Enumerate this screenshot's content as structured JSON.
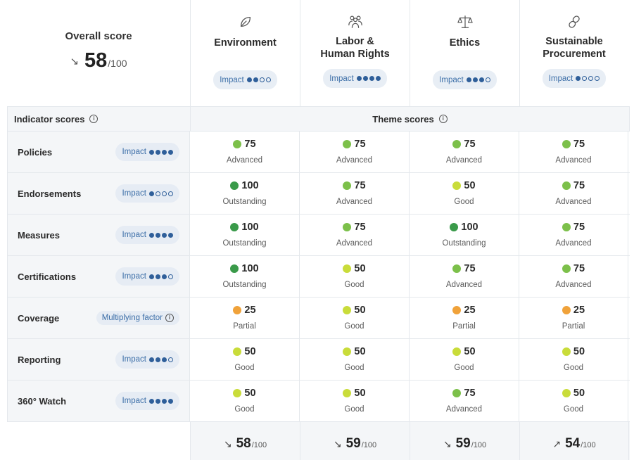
{
  "overall": {
    "label": "Overall score",
    "trend": "↘",
    "value": "58",
    "denominator": "/100"
  },
  "themes": [
    {
      "name": "Environment",
      "icon": "leaf-icon",
      "impact_label": "Impact",
      "impact_level": 2
    },
    {
      "name": "Labor & Human Rights",
      "icon": "people-icon",
      "impact_label": "Impact",
      "impact_level": 4
    },
    {
      "name": "Ethics",
      "icon": "scales-icon",
      "impact_label": "Impact",
      "impact_level": 3
    },
    {
      "name": "Sustainable Procurement",
      "icon": "link-icon",
      "impact_label": "Impact",
      "impact_level": 1
    }
  ],
  "sections": {
    "indicator_scores": "Indicator scores",
    "theme_scores": "Theme scores",
    "info_glyph": "i"
  },
  "level_colors": {
    "Outstanding": "#3a9a4a",
    "Advanced": "#7cc04a",
    "Good": "#c9dc3a",
    "Partial": "#f0a23a"
  },
  "indicators": [
    {
      "name": "Policies",
      "pill_type": "impact",
      "pill_label": "Impact",
      "impact_level": 4,
      "scores": [
        {
          "value": "75",
          "level": "Advanced"
        },
        {
          "value": "75",
          "level": "Advanced"
        },
        {
          "value": "75",
          "level": "Advanced"
        },
        {
          "value": "75",
          "level": "Advanced"
        }
      ]
    },
    {
      "name": "Endorsements",
      "pill_type": "impact",
      "pill_label": "Impact",
      "impact_level": 1,
      "scores": [
        {
          "value": "100",
          "level": "Outstanding"
        },
        {
          "value": "75",
          "level": "Advanced"
        },
        {
          "value": "50",
          "level": "Good"
        },
        {
          "value": "75",
          "level": "Advanced"
        }
      ]
    },
    {
      "name": "Measures",
      "pill_type": "impact",
      "pill_label": "Impact",
      "impact_level": 4,
      "scores": [
        {
          "value": "100",
          "level": "Outstanding"
        },
        {
          "value": "75",
          "level": "Advanced"
        },
        {
          "value": "100",
          "level": "Outstanding"
        },
        {
          "value": "75",
          "level": "Advanced"
        }
      ]
    },
    {
      "name": "Certifications",
      "pill_type": "impact",
      "pill_label": "Impact",
      "impact_level": 3,
      "scores": [
        {
          "value": "100",
          "level": "Outstanding"
        },
        {
          "value": "50",
          "level": "Good"
        },
        {
          "value": "75",
          "level": "Advanced"
        },
        {
          "value": "75",
          "level": "Advanced"
        }
      ]
    },
    {
      "name": "Coverage",
      "pill_type": "multiplying",
      "pill_label": "Multiplying factor",
      "impact_level": 0,
      "scores": [
        {
          "value": "25",
          "level": "Partial"
        },
        {
          "value": "50",
          "level": "Good"
        },
        {
          "value": "25",
          "level": "Partial"
        },
        {
          "value": "25",
          "level": "Partial"
        }
      ]
    },
    {
      "name": "Reporting",
      "pill_type": "impact",
      "pill_label": "Impact",
      "impact_level": 3,
      "scores": [
        {
          "value": "50",
          "level": "Good"
        },
        {
          "value": "50",
          "level": "Good"
        },
        {
          "value": "50",
          "level": "Good"
        },
        {
          "value": "50",
          "level": "Good"
        }
      ]
    },
    {
      "name": "360° Watch",
      "pill_type": "impact",
      "pill_label": "Impact",
      "impact_level": 4,
      "scores": [
        {
          "value": "50",
          "level": "Good"
        },
        {
          "value": "50",
          "level": "Good"
        },
        {
          "value": "75",
          "level": "Advanced"
        },
        {
          "value": "50",
          "level": "Good"
        }
      ]
    }
  ],
  "totals": [
    {
      "trend": "↘",
      "value": "58",
      "denominator": "/100"
    },
    {
      "trend": "↘",
      "value": "59",
      "denominator": "/100"
    },
    {
      "trend": "↘",
      "value": "59",
      "denominator": "/100"
    },
    {
      "trend": "↗",
      "value": "54",
      "denominator": "/100"
    }
  ]
}
